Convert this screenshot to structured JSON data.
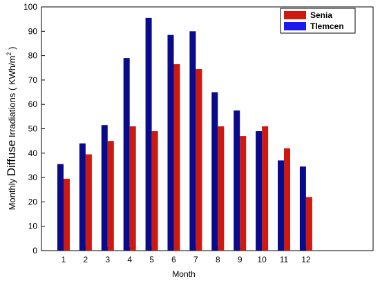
{
  "chart_data": {
    "type": "bar",
    "categories": [
      "1",
      "2",
      "3",
      "4",
      "5",
      "6",
      "7",
      "8",
      "9",
      "10",
      "11",
      "12"
    ],
    "series": [
      {
        "name": "Tlemcen",
        "color": "#0a0a8c",
        "values": [
          35.5,
          44,
          51.5,
          79,
          95.5,
          88.5,
          90,
          65,
          57.5,
          49,
          37,
          34.5
        ]
      },
      {
        "name": "Senia",
        "color": "#cc1a10",
        "values": [
          29.5,
          39.5,
          45,
          51,
          49,
          76.5,
          74.5,
          51,
          47,
          51,
          42,
          22
        ]
      }
    ],
    "xlabel": "Month",
    "ylabel_main": "Monthly ",
    "ylabel_big": "Diffuse",
    "ylabel_rest": " Irradiations ( KWh/m",
    "ylabel_sup": "2",
    "ylabel_end": " )",
    "ylim": [
      0,
      100
    ],
    "yticks": [
      "0",
      "10",
      "20",
      "30",
      "40",
      "50",
      "60",
      "70",
      "80",
      "90",
      "100"
    ],
    "legend_order": [
      "Senia",
      "Tlemcen"
    ],
    "legend_position": "top-right"
  }
}
